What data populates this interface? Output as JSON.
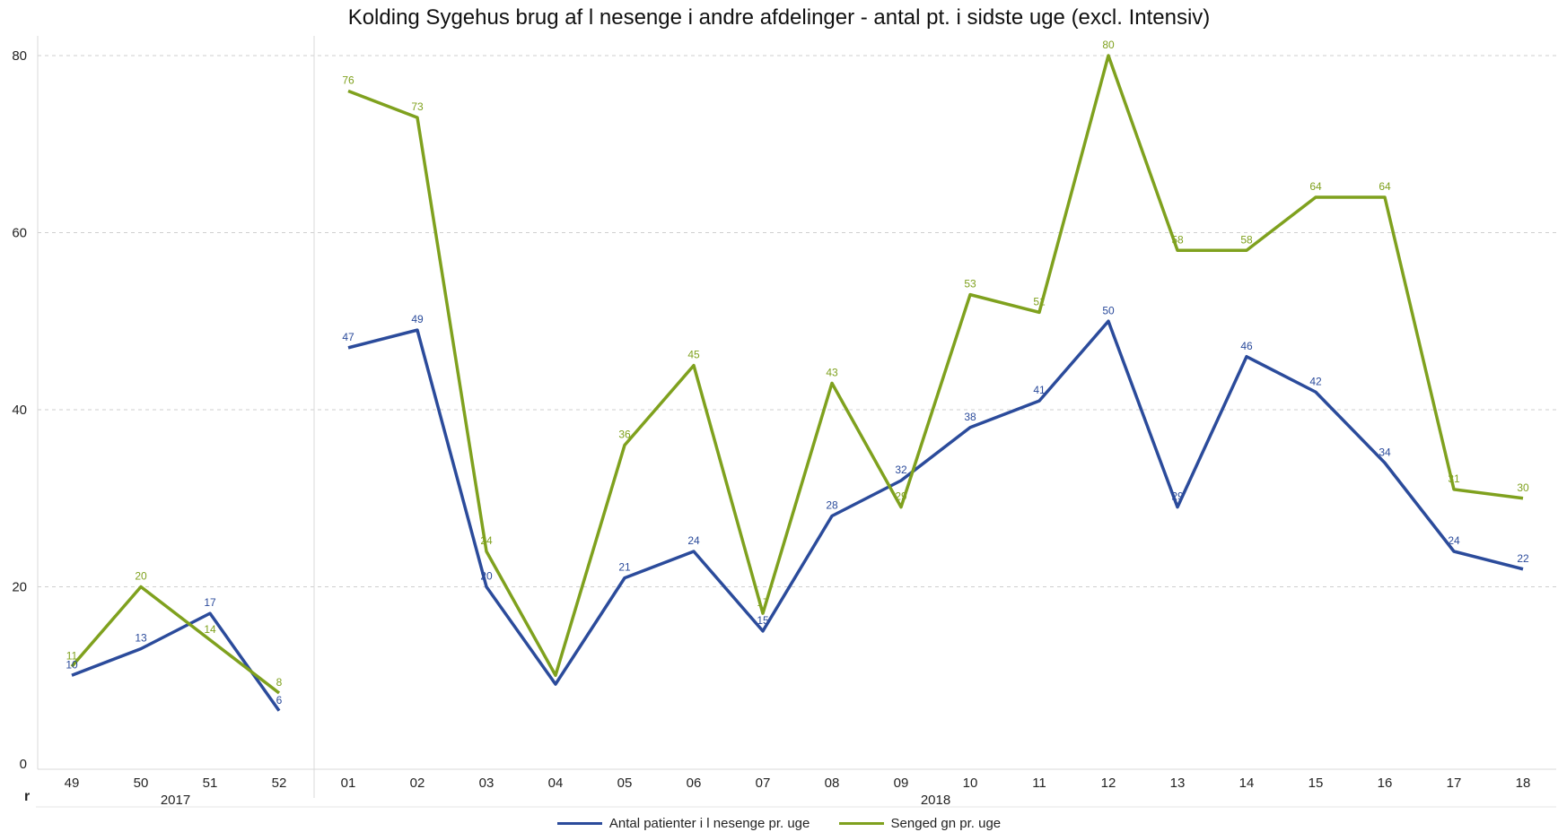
{
  "chart_data": {
    "type": "line",
    "title": "Kolding Sygehus brug af l nesenge i andre afdelinger - antal pt. i sidste uge (excl. Intensiv)",
    "ylim": [
      0,
      80
    ],
    "y_ticks": [
      0,
      20,
      40,
      60,
      80
    ],
    "grid": true,
    "legend_position": "bottom",
    "row_header_letter": "r",
    "panels": [
      {
        "year": "2017",
        "weeks": [
          "49",
          "50",
          "51",
          "52"
        ]
      },
      {
        "year": "2018",
        "weeks": [
          "01",
          "02",
          "03",
          "04",
          "05",
          "06",
          "07",
          "08",
          "09",
          "10",
          "11",
          "12",
          "13",
          "14",
          "15",
          "16",
          "17",
          "18"
        ]
      }
    ],
    "series": [
      {
        "name": "Antal patienter i l nesenge pr. uge",
        "color": "#2b4b9b",
        "values": [
          10,
          13,
          17,
          6,
          47,
          49,
          20,
          9,
          21,
          24,
          15,
          28,
          32,
          38,
          41,
          50,
          29,
          46,
          42,
          34,
          24,
          22
        ],
        "labels": [
          "10",
          "13",
          "17",
          "6",
          "47",
          "49",
          "20",
          "",
          "21",
          "24",
          "15",
          "28",
          "32",
          "38",
          "41",
          "50",
          "29",
          "46",
          "42",
          "34",
          "24",
          "22"
        ]
      },
      {
        "name": "Senged gn pr. uge",
        "color": "#7fa11e",
        "values": [
          11,
          20,
          14,
          8,
          76,
          73,
          24,
          10,
          36,
          45,
          17,
          43,
          29,
          53,
          51,
          80,
          58,
          58,
          64,
          64,
          31,
          30
        ],
        "labels": [
          "11",
          "20",
          "14",
          "8",
          "76",
          "73",
          "24",
          "",
          "36",
          "45",
          "17",
          "43",
          "29",
          "53",
          "51",
          "80",
          "58",
          "58",
          "64",
          "64",
          "31",
          "30"
        ]
      }
    ]
  }
}
